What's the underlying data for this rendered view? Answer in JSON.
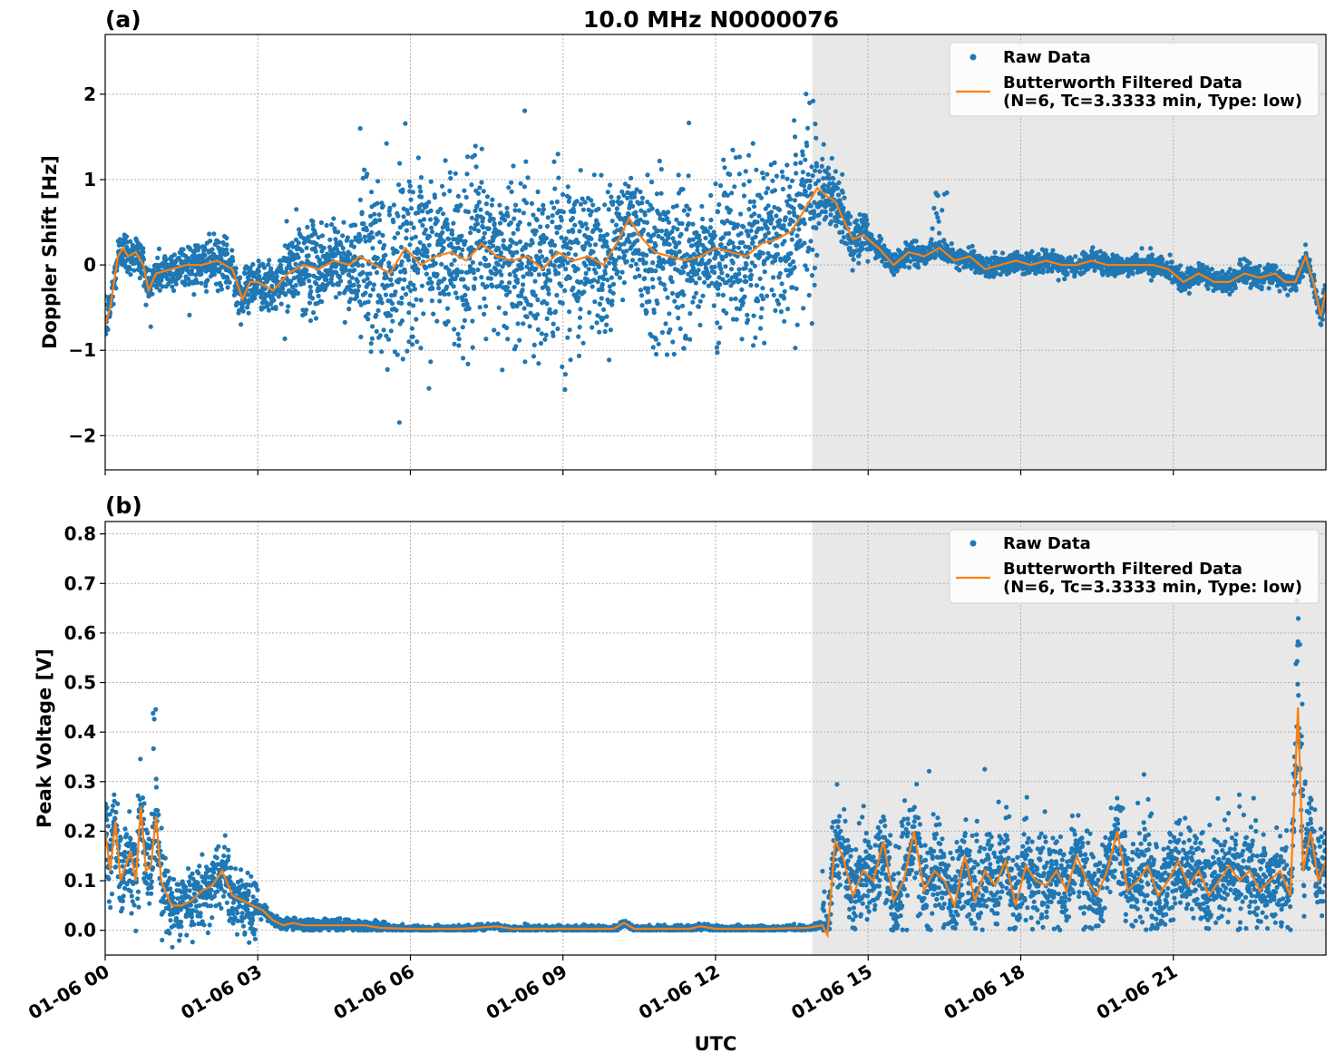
{
  "chart_data": [
    {
      "type": "scatter+line",
      "panel_label": "(a)",
      "title": "10.0 MHz N0000076",
      "xlabel": "",
      "ylabel": "Doppler Shift [Hz]",
      "xlim_hours": [
        0,
        24
      ],
      "ylim": [
        -2.4,
        2.7
      ],
      "yticks": [
        2,
        1,
        0,
        -1,
        -2
      ],
      "ytick_labels": [
        "2",
        "1",
        "0",
        "−1",
        "−2"
      ],
      "grid": true,
      "legend_position": "top-right",
      "shaded_region_hours": [
        13.9,
        24
      ],
      "colors": {
        "raw": "#1f77b4",
        "filtered": "#ff7f0e",
        "shade": "#e8e8e8"
      },
      "series": [
        {
          "name": "Raw Data",
          "style": "points"
        },
        {
          "name": "Butterworth Filtered Data\n(N=6, Tc=3.3333 min, Type: low)",
          "style": "line",
          "x": [
            0,
            0.1,
            0.25,
            0.35,
            0.45,
            0.6,
            0.75,
            0.85,
            1.0,
            1.3,
            1.6,
            1.9,
            2.2,
            2.5,
            2.7,
            2.85,
            3.0,
            3.3,
            3.6,
            3.9,
            4.2,
            4.5,
            4.8,
            5.0,
            5.3,
            5.6,
            5.9,
            6.2,
            6.5,
            6.8,
            7.1,
            7.4,
            7.7,
            8.0,
            8.3,
            8.6,
            8.9,
            9.2,
            9.5,
            9.8,
            10.1,
            10.3,
            10.5,
            10.8,
            11.1,
            11.4,
            11.7,
            12.0,
            12.3,
            12.6,
            12.9,
            13.2,
            13.5,
            13.8,
            14.0,
            14.2,
            14.35,
            14.5,
            14.7,
            14.9,
            15.2,
            15.5,
            15.8,
            16.1,
            16.4,
            16.7,
            17.0,
            17.3,
            17.6,
            17.9,
            18.2,
            18.5,
            18.8,
            19.1,
            19.4,
            19.7,
            20.0,
            20.3,
            20.6,
            20.9,
            21.2,
            21.5,
            21.8,
            22.1,
            22.4,
            22.7,
            23.0,
            23.2,
            23.4,
            23.6,
            23.75,
            23.9,
            24.0
          ],
          "y": [
            -0.7,
            -0.5,
            0.1,
            0.2,
            0.1,
            0.15,
            0.0,
            -0.3,
            -0.1,
            -0.05,
            0.0,
            0.0,
            0.05,
            -0.05,
            -0.4,
            -0.2,
            -0.2,
            -0.3,
            -0.1,
            0.0,
            -0.05,
            0.05,
            0.0,
            0.1,
            0.0,
            -0.1,
            0.2,
            0.0,
            0.1,
            0.15,
            0.05,
            0.25,
            0.1,
            0.05,
            0.1,
            -0.05,
            0.15,
            0.05,
            0.1,
            0.0,
            0.3,
            0.55,
            0.35,
            0.15,
            0.1,
            0.05,
            0.1,
            0.2,
            0.15,
            0.1,
            0.25,
            0.3,
            0.4,
            0.7,
            0.9,
            0.8,
            0.75,
            0.55,
            0.3,
            0.35,
            0.2,
            0.0,
            0.15,
            0.1,
            0.2,
            0.05,
            0.1,
            -0.05,
            0.0,
            0.05,
            0.0,
            0.05,
            0.0,
            0.0,
            0.05,
            0.0,
            0.0,
            0.0,
            0.0,
            -0.05,
            -0.2,
            -0.1,
            -0.2,
            -0.2,
            -0.1,
            -0.15,
            -0.1,
            -0.2,
            -0.2,
            0.1,
            -0.2,
            -0.6,
            -0.3
          ]
        }
      ]
    },
    {
      "type": "scatter+line",
      "panel_label": "(b)",
      "title": "",
      "xlabel": "UTC",
      "ylabel": "Peak Voltage [V]",
      "xlim_hours": [
        0,
        24
      ],
      "ylim": [
        -0.05,
        0.825
      ],
      "yticks": [
        0.0,
        0.1,
        0.2,
        0.3,
        0.4,
        0.5,
        0.6,
        0.7,
        0.8
      ],
      "ytick_labels": [
        "0.0",
        "0.1",
        "0.2",
        "0.3",
        "0.4",
        "0.5",
        "0.6",
        "0.7",
        "0.8"
      ],
      "xticks_hours": [
        0,
        3,
        6,
        9,
        12,
        15,
        18,
        21
      ],
      "xtick_labels": [
        "01-06 00",
        "01-06 03",
        "01-06 06",
        "01-06 09",
        "01-06 12",
        "01-06 15",
        "01-06 18",
        "01-06 21"
      ],
      "grid": true,
      "legend_position": "top-right",
      "shaded_region_hours": [
        13.9,
        24
      ],
      "colors": {
        "raw": "#1f77b4",
        "filtered": "#ff7f0e",
        "shade": "#e8e8e8"
      },
      "series": [
        {
          "name": "Raw Data",
          "style": "points"
        },
        {
          "name": "Butterworth Filtered Data\n(N=6, Tc=3.3333 min, Type: low)",
          "style": "line",
          "x": [
            0,
            0.1,
            0.2,
            0.3,
            0.4,
            0.5,
            0.6,
            0.7,
            0.8,
            0.9,
            1.0,
            1.1,
            1.3,
            1.5,
            1.7,
            1.9,
            2.1,
            2.3,
            2.5,
            2.7,
            2.9,
            3.1,
            3.3,
            3.5,
            3.7,
            3.9,
            4.2,
            4.5,
            4.8,
            5.1,
            5.4,
            6.0,
            7.0,
            7.7,
            8.0,
            9.0,
            10.0,
            10.2,
            10.4,
            11.0,
            11.5,
            11.7,
            12.0,
            13.0,
            13.8,
            14.1,
            14.2,
            14.25,
            14.35,
            14.5,
            14.7,
            14.9,
            15.1,
            15.3,
            15.5,
            15.7,
            15.9,
            16.1,
            16.3,
            16.5,
            16.7,
            16.9,
            17.1,
            17.3,
            17.5,
            17.7,
            17.9,
            18.1,
            18.3,
            18.5,
            18.7,
            18.9,
            19.1,
            19.3,
            19.5,
            19.7,
            19.9,
            20.1,
            20.3,
            20.5,
            20.7,
            20.9,
            21.1,
            21.3,
            21.5,
            21.7,
            21.9,
            22.1,
            22.3,
            22.5,
            22.7,
            22.9,
            23.1,
            23.3,
            23.45,
            23.55,
            23.7,
            23.85,
            24.0
          ],
          "y": [
            0.2,
            0.12,
            0.22,
            0.1,
            0.13,
            0.16,
            0.1,
            0.25,
            0.12,
            0.13,
            0.23,
            0.1,
            0.05,
            0.05,
            0.06,
            0.08,
            0.09,
            0.12,
            0.07,
            0.06,
            0.05,
            0.04,
            0.02,
            0.01,
            0.015,
            0.01,
            0.01,
            0.01,
            0.01,
            0.01,
            0.005,
            0.003,
            0.003,
            0.008,
            0.003,
            0.003,
            0.003,
            0.015,
            0.003,
            0.003,
            0.003,
            0.008,
            0.003,
            0.003,
            0.005,
            0.01,
            -0.01,
            0.05,
            0.18,
            0.15,
            0.07,
            0.12,
            0.1,
            0.18,
            0.06,
            0.1,
            0.2,
            0.08,
            0.12,
            0.1,
            0.05,
            0.15,
            0.06,
            0.12,
            0.09,
            0.14,
            0.05,
            0.13,
            0.1,
            0.09,
            0.12,
            0.08,
            0.15,
            0.1,
            0.07,
            0.12,
            0.2,
            0.08,
            0.1,
            0.13,
            0.07,
            0.1,
            0.14,
            0.09,
            0.12,
            0.07,
            0.1,
            0.13,
            0.1,
            0.12,
            0.08,
            0.1,
            0.12,
            0.07,
            0.45,
            0.12,
            0.2,
            0.1,
            0.14
          ]
        }
      ]
    }
  ]
}
